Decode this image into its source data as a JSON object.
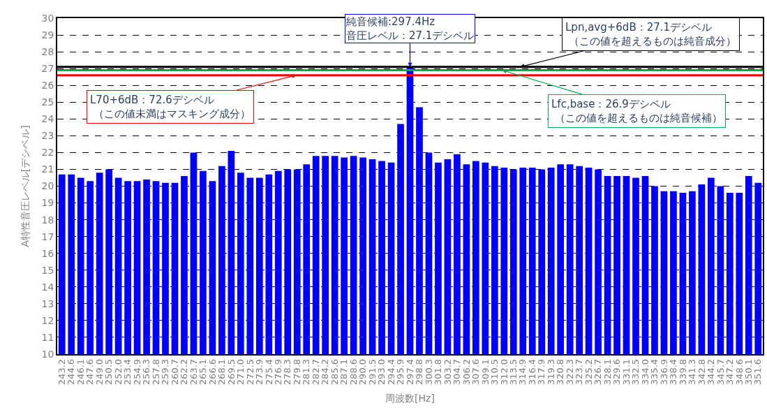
{
  "chart_data": {
    "type": "bar",
    "xlabel": "周波数[Hz]",
    "ylabel": "A特性音圧レベル[デシベル]",
    "categories": [
      "243.2",
      "244.6",
      "246.1",
      "247.6",
      "249.0",
      "250.5",
      "252.0",
      "253.4",
      "254.9",
      "256.3",
      "257.8",
      "259.3",
      "260.7",
      "262.2",
      "263.7",
      "265.1",
      "266.6",
      "268.1",
      "269.5",
      "271.0",
      "272.5",
      "273.9",
      "275.4",
      "276.9",
      "278.3",
      "279.8",
      "281.3",
      "282.7",
      "284.2",
      "285.6",
      "287.1",
      "288.6",
      "290.0",
      "291.5",
      "293.0",
      "294.4",
      "295.9",
      "297.4",
      "298.8",
      "300.3",
      "301.8",
      "303.2",
      "304.7",
      "306.2",
      "307.6",
      "309.1",
      "310.5",
      "312.0",
      "313.5",
      "314.9",
      "316.4",
      "317.9",
      "319.3",
      "320.8",
      "322.3",
      "323.7",
      "325.2",
      "326.7",
      "328.1",
      "329.6",
      "331.1",
      "332.5",
      "334.0",
      "335.4",
      "336.9",
      "338.4",
      "339.8",
      "341.3",
      "342.8",
      "344.2",
      "345.7",
      "347.2",
      "348.6",
      "350.1",
      "351.6"
    ],
    "values": [
      20.7,
      20.7,
      20.5,
      20.3,
      20.8,
      21.0,
      20.5,
      20.3,
      20.3,
      20.4,
      20.3,
      20.2,
      20.2,
      20.6,
      22.0,
      20.9,
      20.3,
      21.2,
      22.1,
      20.8,
      20.5,
      20.5,
      20.7,
      20.9,
      21.0,
      21.0,
      21.3,
      21.8,
      21.8,
      21.8,
      21.7,
      21.8,
      21.7,
      21.6,
      21.5,
      21.4,
      23.7,
      27.1,
      24.7,
      22.0,
      21.4,
      21.6,
      21.9,
      21.3,
      21.5,
      21.4,
      21.2,
      21.1,
      21.0,
      21.1,
      21.1,
      21.0,
      21.1,
      21.3,
      21.3,
      21.2,
      21.1,
      21.0,
      20.6,
      20.6,
      20.6,
      20.5,
      20.6,
      20.0,
      19.7,
      19.7,
      19.6,
      19.7,
      20.1,
      20.5,
      20.0,
      19.6,
      19.6,
      20.6,
      20.2
    ],
    "color": "#0000ff",
    "ylim": [
      10,
      30
    ],
    "yticks": [
      10,
      11,
      12,
      13,
      14,
      15,
      16,
      17,
      18,
      19,
      20,
      21,
      22,
      23,
      24,
      25,
      26,
      27,
      28,
      29,
      30
    ],
    "grid": "y",
    "annotations": [
      {
        "text": "純音候補:297.4Hz\n音圧レベル：27.1デシベル",
        "x": "297.4",
        "y": 27.1
      }
    ],
    "ref_lines": [
      {
        "axis": "y",
        "value": 27.1,
        "label": "Lpn,avg+6dB：27.1デシベル（この値を超えるものは純音成分）",
        "color": "#000000"
      },
      {
        "axis": "y",
        "value": 26.9,
        "label": "Lfc,base：26.9デシベル（この値を超えるものは純音候補）",
        "color": "#00b050"
      },
      {
        "axis": "y",
        "value": 26.6,
        "label": "L70+6dB：72.6デシベル（この値未満はマスキング成分）",
        "color": "#ff0000"
      }
    ]
  }
}
